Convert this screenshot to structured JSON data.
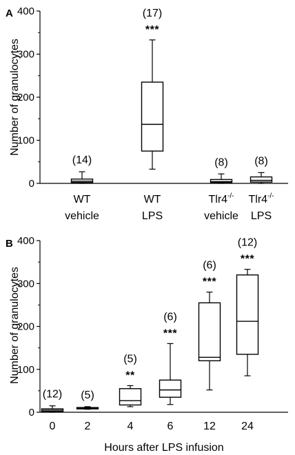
{
  "chart_data": [
    {
      "type": "box",
      "panel": "A",
      "ylabel": "Number of granulocytes",
      "xlabel": "",
      "ylim": [
        0,
        400
      ],
      "yticks": [
        "0",
        "100",
        "200",
        "300",
        "400"
      ],
      "categories": [
        {
          "line1": "WT",
          "line1_sup": "",
          "line2": "vehicle"
        },
        {
          "line1": "WT",
          "line1_sup": "",
          "line2": "LPS"
        },
        {
          "line1": "Tlr4",
          "line1_sup": "-/-",
          "line2": "vehicle"
        },
        {
          "line1": "Tlr4",
          "line1_sup": "-/-",
          "line2": "LPS"
        }
      ],
      "boxes": [
        {
          "n": "(14)",
          "sig": "",
          "whisker_low": 0,
          "q1": 2,
          "median": 5,
          "q3": 10,
          "whisker_high": 27
        },
        {
          "n": "(17)",
          "sig": "***",
          "whisker_low": 33,
          "q1": 75,
          "median": 137,
          "q3": 235,
          "whisker_high": 333
        },
        {
          "n": "(8)",
          "sig": "",
          "whisker_low": 0,
          "q1": 2,
          "median": 4,
          "q3": 9,
          "whisker_high": 22
        },
        {
          "n": "(8)",
          "sig": "",
          "whisker_low": 0,
          "q1": 3,
          "median": 7,
          "q3": 15,
          "whisker_high": 25
        }
      ]
    },
    {
      "type": "box",
      "panel": "B",
      "ylabel": "Number of granulocytes",
      "xlabel": "Hours after LPS infusion",
      "ylim": [
        0,
        400
      ],
      "yticks": [
        "0",
        "100",
        "200",
        "300",
        "400"
      ],
      "categories": [
        {
          "line1": "0",
          "line1_sup": "",
          "line2": ""
        },
        {
          "line1": "2",
          "line1_sup": "",
          "line2": ""
        },
        {
          "line1": "4",
          "line1_sup": "",
          "line2": ""
        },
        {
          "line1": "6",
          "line1_sup": "",
          "line2": ""
        },
        {
          "line1": "12",
          "line1_sup": "",
          "line2": ""
        },
        {
          "line1": "24",
          "line1_sup": "",
          "line2": ""
        }
      ],
      "boxes": [
        {
          "n": "(12)",
          "sig": "",
          "whisker_low": 0,
          "q1": 2,
          "median": 5,
          "q3": 8,
          "whisker_high": 15
        },
        {
          "n": "(5)",
          "sig": "",
          "whisker_low": 7,
          "q1": 9,
          "median": 10,
          "q3": 11,
          "whisker_high": 13
        },
        {
          "n": "(5)",
          "sig": "**",
          "whisker_low": 13,
          "q1": 17,
          "median": 27,
          "q3": 55,
          "whisker_high": 62
        },
        {
          "n": "(6)",
          "sig": "***",
          "whisker_low": 18,
          "q1": 35,
          "median": 52,
          "q3": 75,
          "whisker_high": 160
        },
        {
          "n": "(6)",
          "sig": "***",
          "whisker_low": 52,
          "q1": 120,
          "median": 128,
          "q3": 255,
          "whisker_high": 280
        },
        {
          "n": "(12)",
          "sig": "***",
          "whisker_low": 85,
          "q1": 135,
          "median": 212,
          "q3": 320,
          "whisker_high": 333
        }
      ]
    }
  ]
}
